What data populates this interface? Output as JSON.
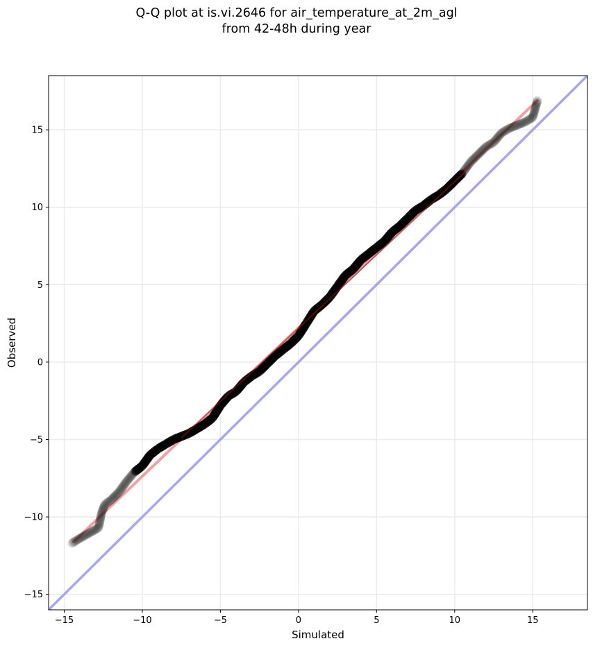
{
  "chart_data": {
    "type": "scatter",
    "title_line_1": "Q-Q plot at is.vi.2646 for air_temperature_at_2m_agl",
    "title_line_2": "from 42-48h during year",
    "xlabel": "Simulated",
    "ylabel": "Observed",
    "xlim": [
      -16,
      18.5
    ],
    "ylim": [
      -16,
      18.5
    ],
    "xticks": [
      -15,
      -10,
      -5,
      0,
      5,
      10,
      15
    ],
    "yticks": [
      -15,
      -10,
      -5,
      0,
      5,
      10,
      15
    ],
    "xtick_labels": [
      "−15",
      "−10",
      "−5",
      "0",
      "5",
      "10",
      "15"
    ],
    "ytick_labels": [
      "−15",
      "−10",
      "−5",
      "0",
      "5",
      "10",
      "15"
    ],
    "grid": true,
    "quantile_curve": [
      [
        -14.5,
        -11.7
      ],
      [
        -14.2,
        -11.5
      ],
      [
        -12.8,
        -10.7
      ],
      [
        -12.7,
        -10.2
      ],
      [
        -12.6,
        -9.7
      ],
      [
        -12.4,
        -9.2
      ],
      [
        -12.0,
        -8.9
      ],
      [
        -11.5,
        -8.4
      ],
      [
        -11.0,
        -7.7
      ],
      [
        -10.5,
        -7.1
      ],
      [
        -10.0,
        -6.7
      ],
      [
        -9.5,
        -6.0
      ],
      [
        -9.0,
        -5.6
      ],
      [
        -8.5,
        -5.3
      ],
      [
        -8.0,
        -5.0
      ],
      [
        -7.0,
        -4.6
      ],
      [
        -6.0,
        -4.0
      ],
      [
        -5.5,
        -3.6
      ],
      [
        -5.0,
        -2.8
      ],
      [
        -4.5,
        -2.2
      ],
      [
        -4.0,
        -1.9
      ],
      [
        -3.5,
        -1.3
      ],
      [
        -3.0,
        -0.9
      ],
      [
        -2.5,
        -0.6
      ],
      [
        -2.0,
        -0.1
      ],
      [
        -1.5,
        0.4
      ],
      [
        -1.0,
        0.8
      ],
      [
        -0.5,
        1.2
      ],
      [
        0.0,
        1.7
      ],
      [
        0.5,
        2.5
      ],
      [
        1.0,
        3.3
      ],
      [
        1.5,
        3.7
      ],
      [
        2.0,
        4.2
      ],
      [
        2.5,
        4.9
      ],
      [
        3.0,
        5.6
      ],
      [
        3.5,
        6.0
      ],
      [
        4.0,
        6.6
      ],
      [
        4.5,
        7.0
      ],
      [
        5.0,
        7.4
      ],
      [
        5.5,
        7.8
      ],
      [
        6.0,
        8.4
      ],
      [
        6.5,
        8.8
      ],
      [
        7.0,
        9.3
      ],
      [
        7.5,
        9.8
      ],
      [
        8.0,
        10.1
      ],
      [
        8.5,
        10.5
      ],
      [
        9.0,
        10.8
      ],
      [
        9.5,
        11.2
      ],
      [
        10.0,
        11.7
      ],
      [
        10.5,
        12.2
      ],
      [
        11.0,
        12.9
      ],
      [
        11.5,
        13.4
      ],
      [
        12.0,
        13.9
      ],
      [
        12.5,
        14.2
      ],
      [
        13.0,
        14.8
      ],
      [
        13.5,
        15.1
      ],
      [
        14.0,
        15.3
      ],
      [
        14.5,
        15.5
      ],
      [
        15.0,
        15.8
      ],
      [
        15.3,
        16.9
      ]
    ],
    "fit_line": [
      [
        -14.4,
        -11.6
      ],
      [
        15.3,
        16.9
      ]
    ],
    "identity_line": [
      [
        -16,
        -16
      ],
      [
        18.5,
        18.5
      ]
    ],
    "colors": {
      "points": "#000000",
      "fit_line": "#f08080",
      "fit_line_core": "#a01010",
      "identity_line": "#a6a6f5",
      "grid": "#ebebeb"
    }
  }
}
